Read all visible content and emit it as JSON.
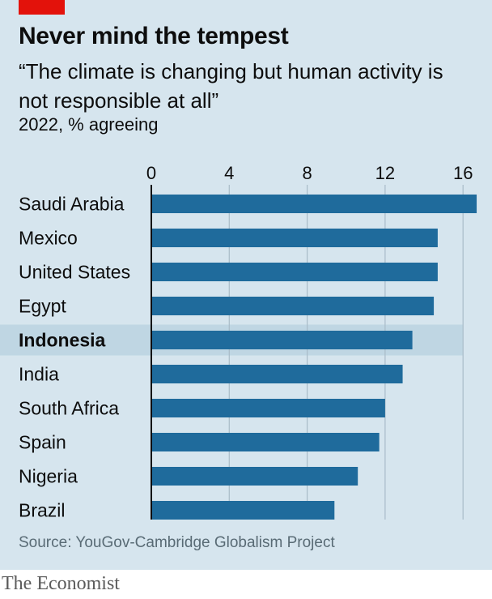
{
  "header": {
    "title": "Never mind the tempest",
    "subtitle": "“The climate is changing but human activity is not responsible at all”",
    "unit": "2022, % agreeing"
  },
  "footer": {
    "source": "Source: YouGov-Cambridge Globalism Project",
    "brand": "The Economist"
  },
  "colors": {
    "bar": "#1f6b9c",
    "highlight_band": "#bfd6e3",
    "gridline": "#a9bcc8",
    "axis": "#0d0d0d"
  },
  "chart_data": {
    "type": "bar",
    "orientation": "horizontal",
    "categories": [
      "Saudi Arabia",
      "Mexico",
      "United States",
      "Egypt",
      "Indonesia",
      "India",
      "South Africa",
      "Spain",
      "Nigeria",
      "Brazil"
    ],
    "values": [
      16.7,
      14.7,
      14.7,
      14.5,
      13.4,
      12.9,
      12.0,
      11.7,
      10.6,
      9.4
    ],
    "highlight": "Indonesia",
    "xlim": [
      0,
      16.7
    ],
    "xticks": [
      0,
      4,
      8,
      12,
      16
    ],
    "grid": true,
    "xaxis_position": "top"
  }
}
